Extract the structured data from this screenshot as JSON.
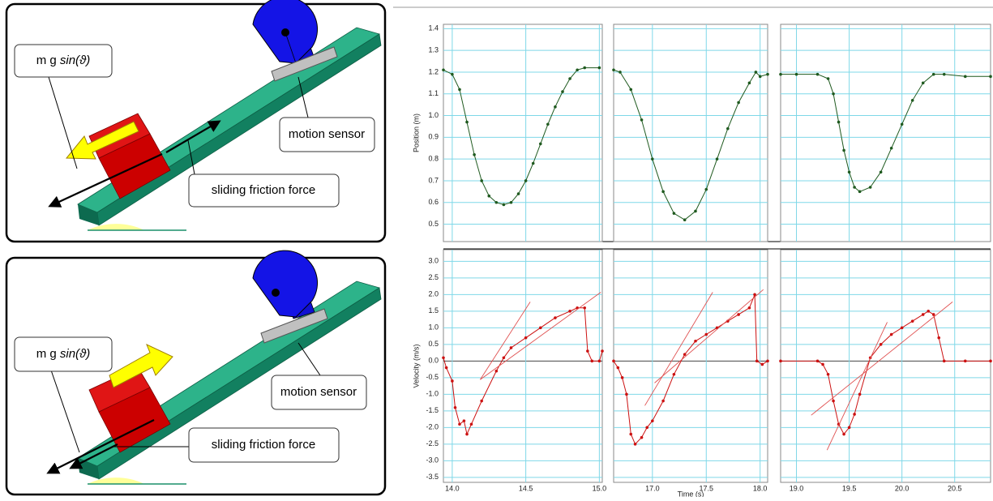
{
  "diagrams": [
    {
      "force_label": "m g",
      "force_fn": "sin(ϑ)",
      "sensor_label": "motion sensor",
      "friction_label": "sliding friction force"
    },
    {
      "force_label": "m g",
      "force_fn": "sin(ϑ)",
      "sensor_label": "motion sensor",
      "friction_label": "sliding friction force"
    }
  ],
  "chart_data": [
    {
      "type": "line",
      "y_label": "Position (m)",
      "xlim": [
        13.94,
        15.02
      ],
      "ylim": [
        0.42,
        1.42
      ],
      "yticks": [
        0.5,
        0.6,
        0.7,
        0.8,
        0.9,
        {
          "value": 1.0,
          "label": "1.0"
        },
        1.1,
        1.2,
        1.3,
        1.4
      ],
      "series": [
        {
          "color": "#1f5a1f",
          "marker": true,
          "x": [
            13.94,
            14.0,
            14.05,
            14.1,
            14.15,
            14.2,
            14.25,
            14.3,
            14.35,
            14.4,
            14.45,
            14.5,
            14.55,
            14.6,
            14.65,
            14.7,
            14.75,
            14.8,
            14.85,
            14.9,
            15.0
          ],
          "values": [
            1.21,
            1.19,
            1.12,
            0.97,
            0.82,
            0.7,
            0.63,
            0.6,
            0.59,
            0.6,
            0.64,
            0.7,
            0.78,
            0.87,
            0.96,
            1.04,
            1.11,
            1.17,
            1.21,
            1.22,
            1.22
          ]
        }
      ]
    },
    {
      "type": "line",
      "xlim": [
        16.64,
        18.07
      ],
      "ylim": [
        0.42,
        1.42
      ],
      "series": [
        {
          "color": "#1f5a1f",
          "marker": true,
          "x": [
            16.64,
            16.7,
            16.8,
            16.9,
            17.0,
            17.1,
            17.2,
            17.3,
            17.4,
            17.5,
            17.6,
            17.7,
            17.8,
            17.9,
            17.96,
            18.0,
            18.07
          ],
          "values": [
            1.21,
            1.2,
            1.12,
            0.98,
            0.8,
            0.65,
            0.55,
            0.52,
            0.56,
            0.66,
            0.8,
            0.94,
            1.06,
            1.15,
            1.2,
            1.18,
            1.19
          ]
        }
      ]
    },
    {
      "type": "line",
      "xlim": [
        18.85,
        20.84
      ],
      "ylim": [
        0.42,
        1.42
      ],
      "series": [
        {
          "color": "#1f5a1f",
          "marker": true,
          "x": [
            18.85,
            19.0,
            19.2,
            19.3,
            19.35,
            19.4,
            19.45,
            19.5,
            19.55,
            19.6,
            19.7,
            19.8,
            19.9,
            20.0,
            20.1,
            20.2,
            20.3,
            20.4,
            20.6,
            20.84
          ],
          "values": [
            1.19,
            1.19,
            1.19,
            1.17,
            1.1,
            0.97,
            0.84,
            0.74,
            0.67,
            0.65,
            0.67,
            0.74,
            0.85,
            0.96,
            1.07,
            1.15,
            1.19,
            1.19,
            1.18,
            1.18
          ]
        }
      ]
    },
    {
      "type": "line",
      "y_label": "Velocity (m/s)",
      "xlim": [
        13.94,
        15.02
      ],
      "ylim": [
        -3.65,
        3.35
      ],
      "xticks": [
        {
          "value": 14.0,
          "label": "14.0"
        },
        14.5,
        {
          "value": 15.0,
          "label": "15.0"
        }
      ],
      "yticks": [
        {
          "value": 3.0,
          "label": "3.0"
        },
        2.5,
        {
          "value": 2.0,
          "label": "2.0"
        },
        1.5,
        {
          "value": 1.0,
          "label": "1.0"
        },
        0.5,
        {
          "value": 0.0,
          "label": "0.0"
        },
        -0.5,
        {
          "value": -1.0,
          "label": "-1.0"
        },
        -1.5,
        {
          "value": -2.0,
          "label": "-2.0"
        },
        -2.5,
        {
          "value": -3.0,
          "label": "-3.0"
        },
        -3.5
      ],
      "series": [
        {
          "color": "#cc1111",
          "marker": true,
          "x": [
            13.94,
            13.96,
            14.0,
            14.02,
            14.05,
            14.08,
            14.1,
            14.13,
            14.2,
            14.3,
            14.35,
            14.4,
            14.5,
            14.6,
            14.7,
            14.8,
            14.85,
            14.9,
            14.92,
            14.95,
            15.0,
            15.02
          ],
          "values": [
            0.1,
            -0.2,
            -0.6,
            -1.4,
            -1.9,
            -1.8,
            -2.2,
            -1.9,
            -1.2,
            -0.3,
            0.1,
            0.4,
            0.7,
            1.0,
            1.3,
            1.5,
            1.6,
            1.6,
            0.3,
            0.0,
            0.0,
            0.3
          ]
        },
        {
          "color": "#e05050",
          "marker": false,
          "x": [
            14.19,
            14.53
          ],
          "values": [
            -0.56,
            1.78
          ]
        },
        {
          "color": "#e05050",
          "marker": false,
          "x": [
            14.19,
            15.01
          ],
          "values": [
            -0.56,
            2.07
          ]
        }
      ]
    },
    {
      "type": "line",
      "x_label": "Time (s)",
      "xlim": [
        16.64,
        18.07
      ],
      "ylim": [
        -3.65,
        3.35
      ],
      "xticks": [
        {
          "value": 17.0,
          "label": "17.0"
        },
        17.5,
        {
          "value": 18.0,
          "label": "18.0"
        }
      ],
      "series": [
        {
          "color": "#cc1111",
          "marker": true,
          "x": [
            16.64,
            16.68,
            16.72,
            16.76,
            16.8,
            16.84,
            16.9,
            16.95,
            17.0,
            17.1,
            17.2,
            17.3,
            17.4,
            17.5,
            17.6,
            17.7,
            17.8,
            17.9,
            17.95,
            17.97,
            18.02,
            18.07
          ],
          "values": [
            0.0,
            -0.2,
            -0.5,
            -1.0,
            -2.2,
            -2.5,
            -2.3,
            -2.0,
            -1.8,
            -1.2,
            -0.4,
            0.2,
            0.6,
            0.8,
            1.0,
            1.2,
            1.4,
            1.6,
            2.0,
            0.0,
            -0.1,
            0.0
          ]
        },
        {
          "color": "#e05050",
          "marker": false,
          "x": [
            16.93,
            17.56
          ],
          "values": [
            -1.34,
            2.07
          ]
        },
        {
          "color": "#e05050",
          "marker": false,
          "x": [
            17.02,
            18.03
          ],
          "values": [
            -0.66,
            2.15
          ]
        }
      ]
    },
    {
      "type": "line",
      "xlim": [
        18.85,
        20.84
      ],
      "ylim": [
        -3.65,
        3.35
      ],
      "xticks": [
        {
          "value": 19.0,
          "label": "19.0"
        },
        19.5,
        {
          "value": 20.0,
          "label": "20.0"
        },
        20.5
      ],
      "series": [
        {
          "color": "#cc1111",
          "marker": true,
          "x": [
            18.85,
            19.2,
            19.25,
            19.3,
            19.35,
            19.4,
            19.45,
            19.5,
            19.55,
            19.6,
            19.7,
            19.8,
            19.9,
            20.0,
            20.1,
            20.2,
            20.25,
            20.3,
            20.35,
            20.4,
            20.6,
            20.84
          ],
          "values": [
            0.0,
            0.0,
            -0.1,
            -0.4,
            -1.2,
            -1.9,
            -2.2,
            -2.0,
            -1.6,
            -1.0,
            0.1,
            0.5,
            0.8,
            1.0,
            1.2,
            1.4,
            1.5,
            1.4,
            0.7,
            0.0,
            0.0,
            0.0
          ]
        },
        {
          "color": "#e05050",
          "marker": false,
          "x": [
            19.29,
            19.86
          ],
          "values": [
            -2.68,
            1.17
          ]
        },
        {
          "color": "#e05050",
          "marker": false,
          "x": [
            19.14,
            20.48
          ],
          "values": [
            -1.63,
            1.78
          ]
        }
      ]
    }
  ]
}
